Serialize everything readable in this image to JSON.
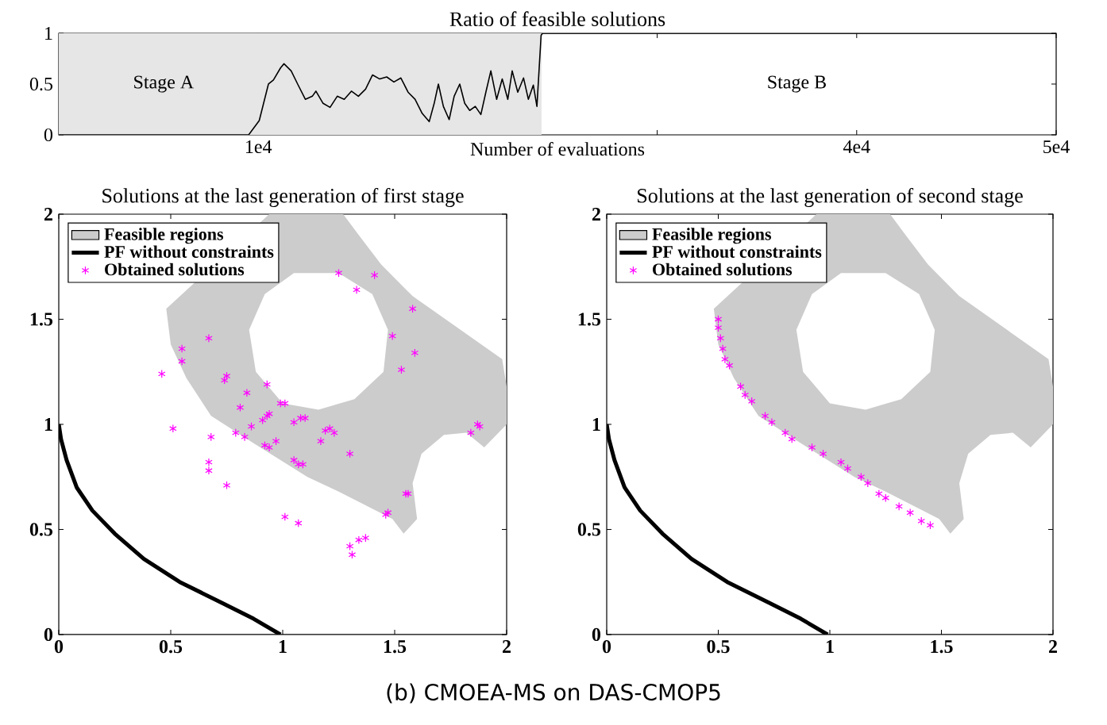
{
  "chart_data": [
    {
      "type": "line",
      "title": "Ratio of feasible solutions",
      "xlabel": "Number of evaluations",
      "xlim": [
        0,
        50000
      ],
      "ylim": [
        0,
        1
      ],
      "xticks": [
        {
          "value": 10000,
          "label": "1e4"
        },
        {
          "value": 20000,
          "label": null
        },
        {
          "value": 30000,
          "label": null
        },
        {
          "value": 40000,
          "label": "4e4"
        },
        {
          "value": 50000,
          "label": "5e4"
        }
      ],
      "yticks": [
        0,
        0.5,
        1
      ],
      "bands": [
        {
          "axis": "x",
          "from": 0,
          "to": 24200,
          "color": "#e6e6e6"
        }
      ],
      "annotations": [
        "Stage A",
        "Stage B"
      ],
      "series": [
        {
          "color": "#000000",
          "x": [
            0,
            9520,
            10050,
            10510,
            10760,
            11120,
            11290,
            11650,
            12000,
            12360,
            12710,
            12890,
            13250,
            13600,
            13960,
            14310,
            14670,
            15020,
            15380,
            15730,
            16090,
            16440,
            16800,
            17150,
            17510,
            17860,
            18220,
            18570,
            18820,
            19030,
            19280,
            19570,
            19820,
            20100,
            20350,
            20600,
            20880,
            21160,
            21410,
            21660,
            21950,
            22230,
            22510,
            22730,
            23010,
            23300,
            23540,
            23790,
            23970,
            24180,
            24250,
            50000
          ],
          "values": [
            0,
            0,
            0.14,
            0.5,
            0.54,
            0.66,
            0.7,
            0.63,
            0.49,
            0.35,
            0.38,
            0.43,
            0.31,
            0.27,
            0.38,
            0.35,
            0.43,
            0.38,
            0.45,
            0.59,
            0.55,
            0.57,
            0.52,
            0.56,
            0.42,
            0.35,
            0.21,
            0.13,
            0.31,
            0.5,
            0.28,
            0.15,
            0.38,
            0.5,
            0.31,
            0.24,
            0.28,
            0.2,
            0.42,
            0.63,
            0.35,
            0.55,
            0.35,
            0.63,
            0.42,
            0.56,
            0.35,
            0.49,
            0.28,
            0.98,
            1,
            1
          ]
        }
      ]
    },
    {
      "type": "scatter",
      "title": "Solutions at the last generation of first stage",
      "xlim": [
        0,
        2
      ],
      "ylim": [
        0,
        2
      ],
      "xticks": [
        0,
        0.5,
        1,
        1.5,
        2
      ],
      "yticks": [
        0,
        0.5,
        1,
        1.5,
        2
      ],
      "legend": "top left",
      "series": [
        {
          "name": "Feasible regions",
          "type": "area",
          "color": "#cccccc",
          "x": [
            0.94,
            0.48,
            0.5,
            0.57,
            0.68,
            0.87,
            1.11,
            1.25,
            1.49,
            1.54,
            1.6,
            1.58,
            1.62,
            1.72,
            1.82,
            1.9,
            2.0,
            2.0,
            1.98,
            1.58,
            1.44,
            1.34,
            1.27,
            null,
            0.85,
            0.88,
            1.0,
            1.16,
            1.32,
            1.45,
            1.47,
            1.4,
            1.25,
            1.05,
            0.92
          ],
          "values": [
            2.0,
            1.55,
            1.38,
            1.22,
            1.04,
            0.91,
            0.75,
            0.68,
            0.55,
            0.48,
            0.55,
            0.72,
            0.86,
            0.95,
            0.96,
            0.89,
            1.0,
            1.18,
            1.31,
            1.61,
            1.76,
            1.9,
            2.0,
            null,
            1.45,
            1.25,
            1.1,
            1.07,
            1.12,
            1.25,
            1.45,
            1.62,
            1.72,
            1.72,
            1.62
          ]
        },
        {
          "name": "PF without constraints",
          "type": "line",
          "color": "#000000",
          "marker": "none",
          "x": [
            0,
            0.01,
            0.035,
            0.08,
            0.15,
            0.25,
            0.38,
            0.54,
            0.73,
            0.87,
            0.99
          ],
          "values": [
            1,
            0.93,
            0.83,
            0.7,
            0.59,
            0.48,
            0.36,
            0.25,
            0.15,
            0.075,
            0
          ]
        },
        {
          "name": "Obtained solutions",
          "type": "scatter",
          "color": "#ff00ff",
          "marker": "cross",
          "x": [
            0.46,
            0.55,
            0.55,
            0.67,
            0.75,
            0.74,
            0.84,
            0.93,
            0.81,
            0.99,
            1.01,
            0.93,
            0.91,
            0.94,
            0.86,
            0.79,
            0.83,
            0.51,
            0.68,
            0.94,
            0.97,
            0.92,
            1.05,
            1.08,
            1.1,
            1.21,
            1.19,
            1.23,
            1.17,
            1.05,
            1.07,
            1.09,
            1.3,
            0.67,
            0.67,
            0.75,
            1.01,
            1.07,
            1.3,
            1.31,
            1.34,
            1.37,
            1.46,
            1.47,
            1.55,
            1.56,
            1.84,
            1.87,
            1.88,
            1.53,
            1.59,
            1.49,
            1.58,
            1.33,
            1.41,
            1.25
          ],
          "values": [
            1.24,
            1.36,
            1.3,
            1.41,
            1.23,
            1.21,
            1.15,
            1.19,
            1.08,
            1.1,
            1.1,
            1.04,
            1.02,
            1.05,
            0.99,
            0.96,
            0.94,
            0.98,
            0.94,
            0.89,
            0.92,
            0.9,
            1.01,
            1.03,
            1.03,
            0.98,
            0.97,
            0.96,
            0.92,
            0.83,
            0.81,
            0.81,
            0.86,
            0.82,
            0.78,
            0.71,
            0.56,
            0.53,
            0.42,
            0.38,
            0.45,
            0.46,
            0.57,
            0.58,
            0.67,
            0.67,
            0.96,
            1.0,
            0.99,
            1.26,
            1.34,
            1.42,
            1.55,
            1.64,
            1.71,
            1.72
          ]
        }
      ]
    },
    {
      "type": "scatter",
      "title": "Solutions at the last generation of second stage",
      "xlim": [
        0,
        2
      ],
      "ylim": [
        0,
        2
      ],
      "xticks": [
        0,
        0.5,
        1,
        1.5,
        2
      ],
      "yticks": [
        0,
        0.5,
        1,
        1.5,
        2
      ],
      "legend": "top left",
      "annotations": [
        "(b) CMOEA-MS on DAS-CMOP5"
      ],
      "series": [
        {
          "name": "Feasible regions",
          "type": "area",
          "color": "#cccccc",
          "x": [
            0.94,
            0.48,
            0.5,
            0.57,
            0.68,
            0.87,
            1.11,
            1.25,
            1.49,
            1.54,
            1.6,
            1.58,
            1.62,
            1.72,
            1.82,
            1.9,
            2.0,
            2.0,
            1.98,
            1.58,
            1.44,
            1.34,
            1.27,
            null,
            0.85,
            0.88,
            1.0,
            1.16,
            1.32,
            1.45,
            1.47,
            1.4,
            1.25,
            1.05,
            0.92
          ],
          "values": [
            2.0,
            1.55,
            1.38,
            1.22,
            1.04,
            0.91,
            0.75,
            0.68,
            0.55,
            0.48,
            0.55,
            0.72,
            0.86,
            0.95,
            0.96,
            0.89,
            1.0,
            1.18,
            1.31,
            1.61,
            1.76,
            1.9,
            2.0,
            null,
            1.45,
            1.25,
            1.1,
            1.07,
            1.12,
            1.25,
            1.45,
            1.62,
            1.72,
            1.72,
            1.62
          ]
        },
        {
          "name": "PF without constraints",
          "type": "line",
          "color": "#000000",
          "marker": "none",
          "x": [
            0,
            0.01,
            0.035,
            0.08,
            0.15,
            0.25,
            0.38,
            0.54,
            0.73,
            0.87,
            0.99
          ],
          "values": [
            1,
            0.93,
            0.83,
            0.7,
            0.59,
            0.48,
            0.36,
            0.25,
            0.15,
            0.075,
            0
          ]
        },
        {
          "name": "Obtained solutions",
          "type": "scatter",
          "color": "#ff00ff",
          "marker": "cross",
          "x": [
            0.5,
            0.5,
            0.51,
            0.52,
            0.53,
            0.55,
            0.6,
            0.62,
            0.65,
            0.71,
            0.74,
            0.8,
            0.83,
            0.92,
            0.97,
            1.05,
            1.08,
            1.14,
            1.17,
            1.22,
            1.25,
            1.31,
            1.36,
            1.41,
            1.45
          ],
          "values": [
            1.5,
            1.46,
            1.41,
            1.36,
            1.31,
            1.28,
            1.18,
            1.14,
            1.11,
            1.04,
            1.01,
            0.96,
            0.93,
            0.89,
            0.86,
            0.82,
            0.79,
            0.75,
            0.72,
            0.67,
            0.65,
            0.61,
            0.58,
            0.54,
            0.52
          ]
        }
      ]
    }
  ]
}
